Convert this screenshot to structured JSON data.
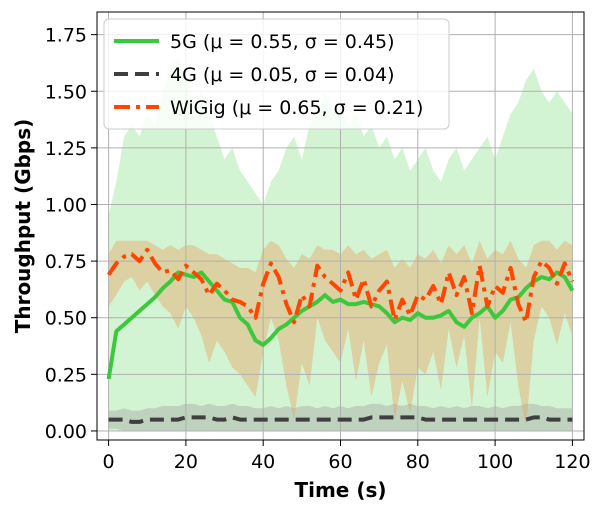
{
  "chart_data": {
    "type": "line",
    "xlabel": "Time (s)",
    "ylabel": "Throughput (Gbps)",
    "xlim": [
      -3,
      123
    ],
    "ylim": [
      -0.04,
      1.85
    ],
    "x_ticks": [
      0,
      20,
      40,
      60,
      80,
      100,
      120
    ],
    "y_ticks": [
      0.0,
      0.25,
      0.5,
      0.75,
      1.0,
      1.25,
      1.5,
      1.75
    ],
    "x_tick_labels": [
      "0",
      "20",
      "40",
      "60",
      "80",
      "100",
      "120"
    ],
    "y_tick_labels": [
      "0.00",
      "0.25",
      "0.50",
      "0.75",
      "1.00",
      "1.25",
      "1.50",
      "1.75"
    ],
    "grid": true,
    "legend_position": "top-left",
    "x": [
      0,
      2,
      4,
      6,
      8,
      10,
      12,
      14,
      16,
      18,
      20,
      22,
      24,
      26,
      28,
      30,
      32,
      34,
      36,
      38,
      40,
      42,
      44,
      46,
      48,
      50,
      52,
      54,
      56,
      58,
      60,
      62,
      64,
      66,
      68,
      70,
      72,
      74,
      76,
      78,
      80,
      82,
      84,
      86,
      88,
      90,
      92,
      94,
      96,
      98,
      100,
      102,
      104,
      106,
      108,
      110,
      112,
      114,
      116,
      118,
      120
    ],
    "series": [
      {
        "name": "5G ($\\mu = 0.55, \\sigma = 0.45$)",
        "legend_label": "5G (μ = 0.55, σ = 0.45)",
        "color": "#3cc83c",
        "style": "solid",
        "values": [
          0.23,
          0.44,
          0.47,
          0.5,
          0.53,
          0.56,
          0.59,
          0.63,
          0.66,
          0.7,
          0.69,
          0.68,
          0.7,
          0.66,
          0.62,
          0.58,
          0.57,
          0.5,
          0.47,
          0.4,
          0.38,
          0.41,
          0.45,
          0.47,
          0.5,
          0.53,
          0.55,
          0.57,
          0.6,
          0.57,
          0.58,
          0.56,
          0.56,
          0.57,
          0.56,
          0.55,
          0.52,
          0.48,
          0.5,
          0.49,
          0.52,
          0.5,
          0.5,
          0.51,
          0.53,
          0.48,
          0.46,
          0.5,
          0.52,
          0.55,
          0.5,
          0.53,
          0.58,
          0.59,
          0.63,
          0.66,
          0.68,
          0.67,
          0.7,
          0.68,
          0.62
        ],
        "band_upper": [
          0.95,
          1.1,
          1.3,
          1.35,
          1.3,
          1.4,
          1.35,
          1.5,
          1.6,
          1.65,
          1.55,
          1.45,
          1.5,
          1.4,
          1.3,
          1.2,
          1.25,
          1.15,
          1.1,
          1.05,
          1.0,
          1.1,
          1.15,
          1.25,
          1.3,
          1.2,
          1.35,
          1.4,
          1.5,
          1.4,
          1.45,
          1.35,
          1.4,
          1.3,
          1.35,
          1.25,
          1.3,
          1.2,
          1.25,
          1.15,
          1.2,
          1.25,
          1.15,
          1.1,
          1.2,
          1.25,
          1.15,
          1.2,
          1.25,
          1.3,
          1.2,
          1.3,
          1.4,
          1.45,
          1.55,
          1.6,
          1.5,
          1.45,
          1.5,
          1.45,
          1.4
        ],
        "band_lower": [
          0.0,
          0.0,
          0.0,
          0.0,
          0.0,
          0.0,
          0.0,
          0.0,
          0.0,
          0.0,
          0.0,
          0.0,
          0.0,
          0.0,
          0.0,
          0.0,
          0.0,
          0.0,
          0.0,
          0.0,
          0.0,
          0.0,
          0.0,
          0.0,
          0.0,
          0.0,
          0.0,
          0.0,
          0.0,
          0.0,
          0.0,
          0.0,
          0.0,
          0.0,
          0.0,
          0.0,
          0.0,
          0.0,
          0.0,
          0.0,
          0.0,
          0.0,
          0.0,
          0.0,
          0.0,
          0.0,
          0.0,
          0.0,
          0.0,
          0.0,
          0.0,
          0.0,
          0.0,
          0.0,
          0.0,
          0.0,
          0.0,
          0.0,
          0.0,
          0.0,
          0.0
        ]
      },
      {
        "name": "4G ($\\mu = 0.05, \\sigma = 0.04$)",
        "legend_label": "4G (μ = 0.05, σ = 0.04)",
        "color": "#3f3f3f",
        "style": "dashed",
        "values": [
          0.05,
          0.05,
          0.05,
          0.04,
          0.04,
          0.05,
          0.05,
          0.05,
          0.05,
          0.05,
          0.06,
          0.06,
          0.06,
          0.06,
          0.05,
          0.05,
          0.06,
          0.05,
          0.05,
          0.05,
          0.05,
          0.05,
          0.05,
          0.05,
          0.05,
          0.05,
          0.05,
          0.05,
          0.05,
          0.05,
          0.05,
          0.05,
          0.05,
          0.05,
          0.06,
          0.06,
          0.06,
          0.06,
          0.06,
          0.06,
          0.06,
          0.05,
          0.05,
          0.05,
          0.05,
          0.05,
          0.05,
          0.05,
          0.05,
          0.05,
          0.05,
          0.05,
          0.05,
          0.05,
          0.05,
          0.06,
          0.06,
          0.05,
          0.05,
          0.05,
          0.05
        ],
        "band_upper": [
          0.09,
          0.09,
          0.1,
          0.09,
          0.09,
          0.1,
          0.1,
          0.11,
          0.11,
          0.11,
          0.12,
          0.12,
          0.11,
          0.12,
          0.11,
          0.11,
          0.12,
          0.11,
          0.11,
          0.1,
          0.1,
          0.11,
          0.1,
          0.11,
          0.1,
          0.11,
          0.11,
          0.1,
          0.11,
          0.1,
          0.11,
          0.1,
          0.11,
          0.11,
          0.12,
          0.12,
          0.11,
          0.12,
          0.11,
          0.12,
          0.11,
          0.11,
          0.1,
          0.11,
          0.1,
          0.11,
          0.1,
          0.11,
          0.11,
          0.1,
          0.11,
          0.1,
          0.11,
          0.11,
          0.12,
          0.12,
          0.11,
          0.11,
          0.1,
          0.1,
          0.1
        ],
        "band_lower": [
          0.01,
          0.01,
          0.0,
          0.0,
          0.0,
          0.0,
          0.0,
          0.0,
          0.0,
          0.0,
          0.0,
          0.0,
          0.0,
          0.0,
          0.0,
          0.0,
          0.0,
          0.0,
          0.0,
          0.0,
          0.0,
          0.0,
          0.0,
          0.0,
          0.0,
          0.0,
          0.0,
          0.0,
          0.0,
          0.0,
          0.0,
          0.0,
          0.0,
          0.0,
          0.0,
          0.0,
          0.0,
          0.0,
          0.0,
          0.0,
          0.0,
          0.0,
          0.0,
          0.0,
          0.0,
          0.0,
          0.0,
          0.0,
          0.0,
          0.0,
          0.0,
          0.0,
          0.0,
          0.0,
          0.0,
          0.0,
          0.0,
          0.0,
          0.0,
          0.0,
          0.0
        ]
      },
      {
        "name": "WiGig ($\\mu = 0.65, \\sigma = 0.21$)",
        "legend_label": "WiGig (μ = 0.65, σ = 0.21)",
        "color": "#ff4500",
        "style": "dashdot",
        "values": [
          0.69,
          0.74,
          0.77,
          0.78,
          0.75,
          0.8,
          0.74,
          0.7,
          0.71,
          0.67,
          0.73,
          0.7,
          0.67,
          0.6,
          0.65,
          0.62,
          0.58,
          0.57,
          0.55,
          0.5,
          0.65,
          0.74,
          0.68,
          0.56,
          0.48,
          0.6,
          0.55,
          0.73,
          0.68,
          0.65,
          0.62,
          0.7,
          0.58,
          0.67,
          0.55,
          0.62,
          0.66,
          0.49,
          0.58,
          0.51,
          0.6,
          0.58,
          0.64,
          0.56,
          0.7,
          0.6,
          0.68,
          0.52,
          0.73,
          0.55,
          0.64,
          0.61,
          0.72,
          0.56,
          0.48,
          0.68,
          0.75,
          0.72,
          0.65,
          0.74,
          0.66
        ],
        "band_upper": [
          0.78,
          0.84,
          0.84,
          0.84,
          0.84,
          0.84,
          0.82,
          0.8,
          0.82,
          0.8,
          0.82,
          0.82,
          0.8,
          0.78,
          0.78,
          0.76,
          0.74,
          0.72,
          0.72,
          0.7,
          0.8,
          0.84,
          0.82,
          0.76,
          0.72,
          0.78,
          0.76,
          0.82,
          0.8,
          0.8,
          0.78,
          0.82,
          0.78,
          0.8,
          0.76,
          0.78,
          0.8,
          0.72,
          0.76,
          0.72,
          0.78,
          0.76,
          0.8,
          0.74,
          0.82,
          0.78,
          0.82,
          0.74,
          0.84,
          0.76,
          0.8,
          0.78,
          0.84,
          0.76,
          0.72,
          0.82,
          0.84,
          0.84,
          0.8,
          0.84,
          0.82
        ],
        "band_lower": [
          0.55,
          0.6,
          0.66,
          0.68,
          0.62,
          0.66,
          0.6,
          0.55,
          0.52,
          0.45,
          0.55,
          0.5,
          0.42,
          0.3,
          0.4,
          0.35,
          0.28,
          0.25,
          0.2,
          0.15,
          0.35,
          0.5,
          0.4,
          0.2,
          0.05,
          0.3,
          0.2,
          0.5,
          0.4,
          0.35,
          0.3,
          0.45,
          0.22,
          0.4,
          0.15,
          0.3,
          0.38,
          0.05,
          0.22,
          0.08,
          0.28,
          0.25,
          0.35,
          0.18,
          0.45,
          0.28,
          0.42,
          0.1,
          0.5,
          0.15,
          0.35,
          0.3,
          0.48,
          0.2,
          0.02,
          0.4,
          0.55,
          0.5,
          0.38,
          0.52,
          0.42
        ]
      }
    ]
  }
}
